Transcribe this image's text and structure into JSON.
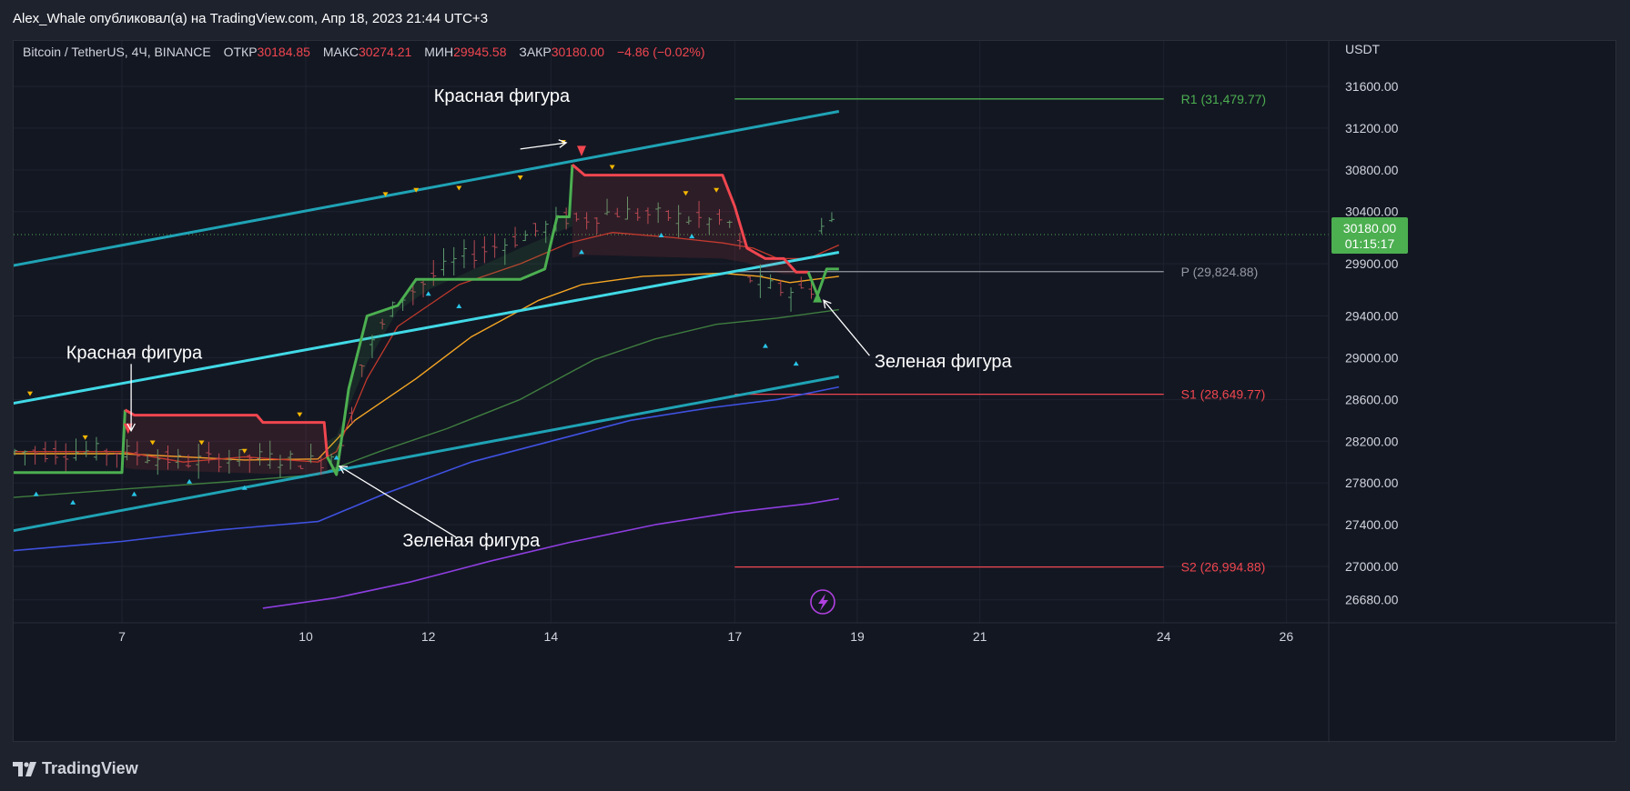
{
  "attribution": "Alex_Whale опубликовал(а) на TradingView.com, Апр 18, 2023 21:44 UTC+3",
  "legend": {
    "symbol": "Bitcoin / TetherUS, 4Ч, BINANCE",
    "open_label": "ОТКР",
    "open_value": "30184.85",
    "high_label": "МАКС",
    "high_value": "30274.21",
    "low_label": "МИН",
    "low_value": "29945.58",
    "close_label": "ЗАКР",
    "close_value": "30180.00",
    "change": "−4.86 (−0.02%)"
  },
  "price_badge": {
    "price": "30180.00",
    "countdown": "01:15:17"
  },
  "logo_text": "TradingView",
  "colors": {
    "bg": "#131722",
    "text": "#d1d4dc",
    "red": "#f0464f",
    "green": "#4caf50",
    "cyan": "#22c1d6",
    "orange": "#f5a623",
    "darkgreen": "#3f7d3f",
    "blue": "#3f51e0",
    "purple": "#8e3ee0",
    "badge": "#4caf50"
  },
  "chart_data": {
    "type": "candlestick",
    "currency": "USDT",
    "x_ticks": [
      {
        "label": "7",
        "day": 7
      },
      {
        "label": "10",
        "day": 10
      },
      {
        "label": "12",
        "day": 12
      },
      {
        "label": "14",
        "day": 14
      },
      {
        "label": "17",
        "day": 17
      },
      {
        "label": "19",
        "day": 19
      },
      {
        "label": "21",
        "day": 21
      },
      {
        "label": "24",
        "day": 24
      },
      {
        "label": "26",
        "day": 26
      }
    ],
    "y_ticks": [
      31600,
      31200,
      30800,
      30400,
      29900,
      29400,
      29000,
      28600,
      28200,
      27800,
      27400,
      27000,
      26680
    ],
    "y_tick_labels": [
      "31600.00",
      "31200.00",
      "30800.00",
      "30400.00",
      "29900.00",
      "29400.00",
      "29000.00",
      "28600.00",
      "28200.00",
      "27800.00",
      "27400.00",
      "27000.00",
      "26680.00"
    ],
    "current_price": 30180.0,
    "pivots": [
      {
        "label": "R1 (31,479.77)",
        "value": 31479.77,
        "color": "#4caf50"
      },
      {
        "label": "P (29,824.88)",
        "value": 29824.88,
        "color": "#9598a1"
      },
      {
        "label": "S1 (28,649.77)",
        "value": 28649.77,
        "color": "#f0464f"
      },
      {
        "label": "S2 (26,994.88)",
        "value": 26994.88,
        "color": "#f0464f"
      }
    ],
    "annotations": [
      {
        "text": "Красная фигура",
        "day": 13.2,
        "price": 31450
      },
      {
        "text": "Красная фигура",
        "day": 7.2,
        "price": 28990
      },
      {
        "text": "Зеленая фигура",
        "day": 12.7,
        "price": 27190
      },
      {
        "text": "Зеленая фигура",
        "day": 20.4,
        "price": 28910
      }
    ],
    "channel_upper": [
      [
        5.2,
        29880
      ],
      [
        18.7,
        31360
      ]
    ],
    "channel_mid": [
      [
        5.2,
        28560
      ],
      [
        18.7,
        30010
      ]
    ],
    "channel_lower": [
      [
        5.2,
        27340
      ],
      [
        18.7,
        28820
      ]
    ],
    "supertrend_green": [
      [
        5.2,
        27900
      ],
      [
        7.0,
        27900
      ],
      [
        7.05,
        28500
      ]
    ],
    "supertrend_red_1": [
      [
        7.05,
        28500
      ],
      [
        7.2,
        28450
      ],
      [
        9.2,
        28450
      ],
      [
        9.3,
        28380
      ],
      [
        10.3,
        28380
      ],
      [
        10.35,
        28050
      ]
    ],
    "supertrend_green_2": [
      [
        10.35,
        28050
      ],
      [
        10.5,
        27880
      ],
      [
        10.7,
        28700
      ],
      [
        11.0,
        29400
      ],
      [
        11.5,
        29500
      ],
      [
        11.8,
        29750
      ],
      [
        12.0,
        29750
      ],
      [
        13.5,
        29750
      ],
      [
        13.9,
        29850
      ],
      [
        14.1,
        30350
      ],
      [
        14.3,
        30350
      ],
      [
        14.35,
        30850
      ]
    ],
    "supertrend_red_2": [
      [
        14.35,
        30850
      ],
      [
        14.55,
        30750
      ],
      [
        16.8,
        30750
      ],
      [
        17.0,
        30450
      ],
      [
        17.2,
        30050
      ],
      [
        17.5,
        29950
      ],
      [
        17.8,
        29950
      ],
      [
        18.0,
        29820
      ],
      [
        18.2,
        29820
      ]
    ],
    "supertrend_green_3": [
      [
        18.2,
        29820
      ],
      [
        18.35,
        29600
      ],
      [
        18.5,
        29850
      ],
      [
        18.7,
        29850
      ]
    ],
    "ma_red": [
      [
        5.2,
        28100
      ],
      [
        7.0,
        28100
      ],
      [
        8.0,
        28000
      ],
      [
        9.0,
        28050
      ],
      [
        10.2,
        28000
      ],
      [
        10.5,
        28100
      ],
      [
        11.0,
        28800
      ],
      [
        11.5,
        29300
      ],
      [
        12.5,
        29700
      ],
      [
        13.5,
        29900
      ],
      [
        14.3,
        30100
      ],
      [
        15.0,
        30200
      ],
      [
        16.0,
        30150
      ],
      [
        16.8,
        30100
      ],
      [
        17.3,
        30050
      ],
      [
        17.7,
        29950
      ],
      [
        18.2,
        29950
      ],
      [
        18.7,
        30080
      ]
    ],
    "ma_orange": [
      [
        5.2,
        28080
      ],
      [
        7.0,
        28080
      ],
      [
        9.0,
        28020
      ],
      [
        10.2,
        28030
      ],
      [
        10.8,
        28400
      ],
      [
        11.8,
        28800
      ],
      [
        12.7,
        29200
      ],
      [
        13.8,
        29550
      ],
      [
        14.5,
        29700
      ],
      [
        15.5,
        29780
      ],
      [
        16.8,
        29810
      ],
      [
        17.4,
        29780
      ],
      [
        17.9,
        29720
      ],
      [
        18.7,
        29780
      ]
    ],
    "ma_darkgreen": [
      [
        5.2,
        27660
      ],
      [
        7.0,
        27740
      ],
      [
        8.7,
        27810
      ],
      [
        10.2,
        27880
      ],
      [
        11.2,
        28100
      ],
      [
        12.3,
        28320
      ],
      [
        13.5,
        28600
      ],
      [
        14.7,
        28980
      ],
      [
        15.7,
        29180
      ],
      [
        16.7,
        29320
      ],
      [
        17.7,
        29380
      ],
      [
        18.7,
        29460
      ]
    ],
    "ma_blue": [
      [
        5.2,
        27150
      ],
      [
        7.0,
        27240
      ],
      [
        8.6,
        27350
      ],
      [
        10.2,
        27430
      ],
      [
        11.3,
        27700
      ],
      [
        12.7,
        28000
      ],
      [
        14.0,
        28200
      ],
      [
        15.3,
        28400
      ],
      [
        16.6,
        28520
      ],
      [
        17.7,
        28600
      ],
      [
        18.7,
        28720
      ]
    ],
    "ma_purple": [
      [
        9.3,
        26600
      ],
      [
        10.5,
        26700
      ],
      [
        11.7,
        26850
      ],
      [
        13.0,
        27050
      ],
      [
        14.3,
        27230
      ],
      [
        15.7,
        27400
      ],
      [
        17.0,
        27520
      ],
      [
        18.2,
        27600
      ],
      [
        18.7,
        27650
      ]
    ],
    "candle_band_bear": [
      [
        7.2,
        28450,
        27850
      ],
      [
        9.3,
        28450,
        27850
      ]
    ],
    "highs_markers": [
      [
        5.5,
        28650
      ],
      [
        6.4,
        28230
      ],
      [
        7.5,
        28180
      ],
      [
        8.3,
        28180
      ],
      [
        9.0,
        28100
      ],
      [
        9.9,
        28450
      ],
      [
        11.3,
        30560
      ],
      [
        11.8,
        30600
      ],
      [
        12.5,
        30620
      ],
      [
        13.5,
        30720
      ],
      [
        14.2,
        31060
      ],
      [
        15.0,
        30820
      ],
      [
        16.2,
        30570
      ],
      [
        16.7,
        30600
      ]
    ],
    "lows_markers": [
      [
        5.6,
        27700
      ],
      [
        6.2,
        27620
      ],
      [
        7.2,
        27700
      ],
      [
        8.1,
        27820
      ],
      [
        9.0,
        27760
      ],
      [
        10.5,
        28050
      ],
      [
        12.0,
        29620
      ],
      [
        12.5,
        29500
      ],
      [
        14.5,
        30020
      ],
      [
        15.8,
        30180
      ],
      [
        16.3,
        30170
      ],
      [
        17.5,
        29120
      ],
      [
        18.0,
        28950
      ]
    ]
  }
}
